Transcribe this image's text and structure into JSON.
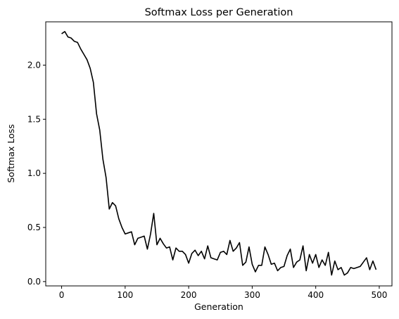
{
  "chart_data": {
    "type": "line",
    "title": "Softmax Loss per Generation",
    "xlabel": "Generation",
    "ylabel": "Softmax Loss",
    "xlim": [
      -25,
      520
    ],
    "ylim": [
      -0.04,
      2.4
    ],
    "xticks": [
      0,
      100,
      200,
      300,
      400,
      500
    ],
    "xtick_labels": [
      "0",
      "100",
      "200",
      "300",
      "400",
      "500"
    ],
    "yticks": [
      0.0,
      0.5,
      1.0,
      1.5,
      2.0
    ],
    "ytick_labels": [
      "0.0",
      "0.5",
      "1.0",
      "1.5",
      "2.0"
    ],
    "grid": false,
    "line_color": "#000000",
    "series": [
      {
        "x": [
          0,
          5,
          10,
          15,
          20,
          25,
          30,
          35,
          40,
          45,
          50,
          55,
          60,
          65,
          70,
          75,
          80,
          85,
          90,
          95,
          100,
          105,
          110,
          115,
          120,
          125,
          130,
          135,
          140,
          145,
          150,
          155,
          160,
          165,
          170,
          175,
          180,
          185,
          190,
          195,
          200,
          205,
          210,
          215,
          220,
          225,
          230,
          235,
          240,
          245,
          250,
          255,
          260,
          265,
          270,
          275,
          280,
          285,
          290,
          295,
          300,
          305,
          310,
          315,
          320,
          325,
          330,
          335,
          340,
          345,
          350,
          355,
          360,
          365,
          370,
          375,
          380,
          385,
          390,
          395,
          400,
          405,
          410,
          415,
          420,
          425,
          430,
          435,
          440,
          445,
          450,
          455,
          460,
          465,
          470,
          475,
          480,
          485,
          490,
          495
        ],
        "values": [
          2.29,
          2.31,
          2.26,
          2.25,
          2.22,
          2.21,
          2.15,
          2.1,
          2.05,
          1.97,
          1.84,
          1.55,
          1.4,
          1.13,
          0.96,
          0.67,
          0.73,
          0.7,
          0.58,
          0.5,
          0.44,
          0.45,
          0.46,
          0.34,
          0.4,
          0.41,
          0.42,
          0.3,
          0.44,
          0.63,
          0.34,
          0.4,
          0.35,
          0.31,
          0.32,
          0.2,
          0.31,
          0.28,
          0.28,
          0.25,
          0.17,
          0.26,
          0.29,
          0.24,
          0.28,
          0.21,
          0.33,
          0.22,
          0.21,
          0.2,
          0.27,
          0.28,
          0.25,
          0.38,
          0.28,
          0.31,
          0.36,
          0.15,
          0.18,
          0.32,
          0.16,
          0.09,
          0.15,
          0.15,
          0.32,
          0.25,
          0.16,
          0.17,
          0.1,
          0.13,
          0.14,
          0.24,
          0.3,
          0.13,
          0.18,
          0.2,
          0.33,
          0.1,
          0.25,
          0.17,
          0.25,
          0.13,
          0.2,
          0.15,
          0.27,
          0.06,
          0.19,
          0.11,
          0.13,
          0.06,
          0.08,
          0.13,
          0.12,
          0.13,
          0.14,
          0.18,
          0.22,
          0.11,
          0.19,
          0.11
        ]
      }
    ]
  }
}
